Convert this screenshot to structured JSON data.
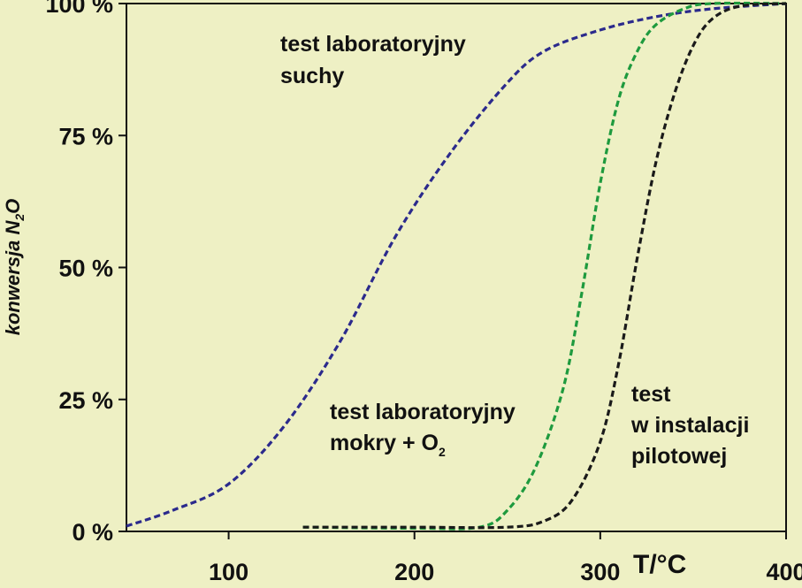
{
  "chart_data": {
    "type": "line",
    "title": "",
    "xlabel": "T/°C",
    "ylabel_main": "konwersja N",
    "ylabel_sub": "2",
    "ylabel_tail": "O",
    "xlim": [
      45,
      400
    ],
    "ylim": [
      0,
      100
    ],
    "x_ticks": [
      {
        "value": 100,
        "label": "100"
      },
      {
        "value": 200,
        "label": "200"
      },
      {
        "value": 300,
        "label": "300"
      },
      {
        "value": 400,
        "label": "400"
      }
    ],
    "y_ticks": [
      {
        "value": 0,
        "label": "0 %"
      },
      {
        "value": 25,
        "label": "25 %"
      },
      {
        "value": 50,
        "label": "50 %"
      },
      {
        "value": 75,
        "label": "75 %"
      },
      {
        "value": 100,
        "label": "100 %"
      }
    ],
    "grid": false,
    "series": [
      {
        "name": "test laboratoryjny suchy",
        "color": "#2b2a8c",
        "x": [
          45,
          70,
          100,
          130,
          160,
          190,
          220,
          250,
          270,
          300,
          330,
          360,
          400
        ],
        "y": [
          1,
          4,
          9,
          20,
          36,
          56,
          72,
          85,
          91,
          95,
          97.5,
          99,
          100
        ]
      },
      {
        "name": "test laboratoryjny mokry + O2",
        "color": "#1e9a3e",
        "x": [
          140,
          200,
          235,
          250,
          265,
          280,
          290,
          300,
          310,
          320,
          330,
          345,
          360,
          400
        ],
        "y": [
          0.8,
          0.6,
          0.8,
          4,
          12,
          27,
          45,
          66,
          82,
          91,
          96,
          99,
          100,
          100
        ]
      },
      {
        "name": "test w instalacji pilotowej",
        "color": "#1a1a1a",
        "x": [
          140,
          200,
          250,
          270,
          285,
          300,
          310,
          320,
          330,
          340,
          350,
          360,
          375,
          400
        ],
        "y": [
          0.8,
          0.8,
          0.8,
          2,
          6,
          17,
          32,
          52,
          70,
          83,
          92,
          97,
          99.5,
          100
        ]
      }
    ],
    "annotations": [
      {
        "lines": [
          "test laboratoryjny",
          "suchy"
        ]
      },
      {
        "line1": "test laboratoryjny",
        "line2_main": "mokry + O",
        "line2_sub": "2"
      },
      {
        "lines": [
          "test",
          "w instalacji",
          "pilotowej"
        ]
      }
    ]
  }
}
